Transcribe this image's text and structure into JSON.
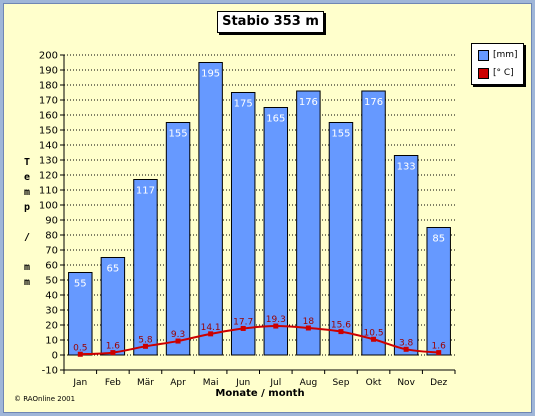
{
  "chart_data": {
    "type": "bar",
    "title": "Stabio 353 m",
    "categories": [
      "Jan",
      "Feb",
      "Mär",
      "Apr",
      "Mai",
      "Jun",
      "Jul",
      "Aug",
      "Sep",
      "Okt",
      "Nov",
      "Dez"
    ],
    "series": [
      {
        "name": "[mm]",
        "kind": "bar",
        "color": "#6699ff",
        "values": [
          55,
          65,
          117,
          155,
          195,
          175,
          165,
          176,
          155,
          176,
          133,
          85
        ]
      },
      {
        "name": "[° C]",
        "kind": "line",
        "color": "#cc0000",
        "values": [
          0.5,
          1.6,
          5.8,
          9.3,
          14.1,
          17.7,
          19.3,
          18,
          15.6,
          10.5,
          3.8,
          1.6
        ]
      }
    ],
    "xlabel": "Monate / month",
    "ylabel": "Temp / mm",
    "ylim": [
      -10,
      200
    ],
    "ytick_step": 10,
    "grid": true,
    "legend": "top-right"
  },
  "footer": {
    "copyright": "©  RAOnline 2001"
  }
}
